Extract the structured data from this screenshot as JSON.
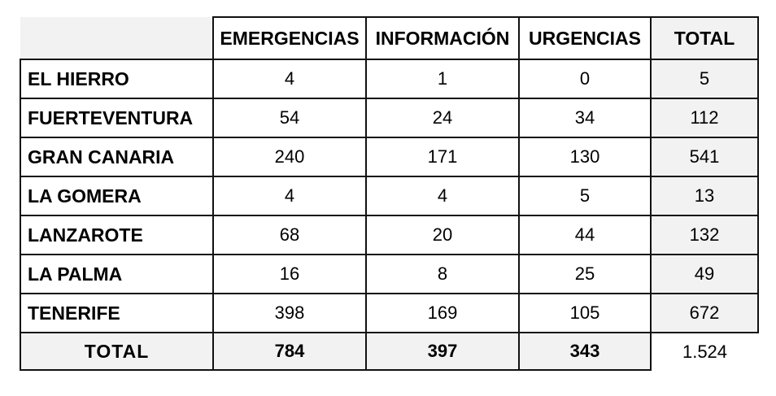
{
  "chart_data": {
    "type": "table",
    "columns": [
      "EMERGENCIAS",
      "INFORMACIÓN",
      "URGENCIAS",
      "TOTAL"
    ],
    "rows": [
      {
        "label": "EL HIERRO",
        "values": [
          "4",
          "1",
          "0",
          "5"
        ]
      },
      {
        "label": "FUERTEVENTURA",
        "values": [
          "54",
          "24",
          "34",
          "112"
        ]
      },
      {
        "label": "GRAN CANARIA",
        "values": [
          "240",
          "171",
          "130",
          "541"
        ]
      },
      {
        "label": "LA GOMERA",
        "values": [
          "4",
          "4",
          "5",
          "13"
        ]
      },
      {
        "label": "LANZAROTE",
        "values": [
          "68",
          "20",
          "44",
          "132"
        ]
      },
      {
        "label": "LA PALMA",
        "values": [
          "16",
          "8",
          "25",
          "49"
        ]
      },
      {
        "label": "TENERIFE",
        "values": [
          "398",
          "169",
          "105",
          "672"
        ]
      }
    ],
    "total_row": {
      "label": "TOTAL",
      "values": [
        "784",
        "397",
        "343",
        "1.524"
      ]
    }
  }
}
